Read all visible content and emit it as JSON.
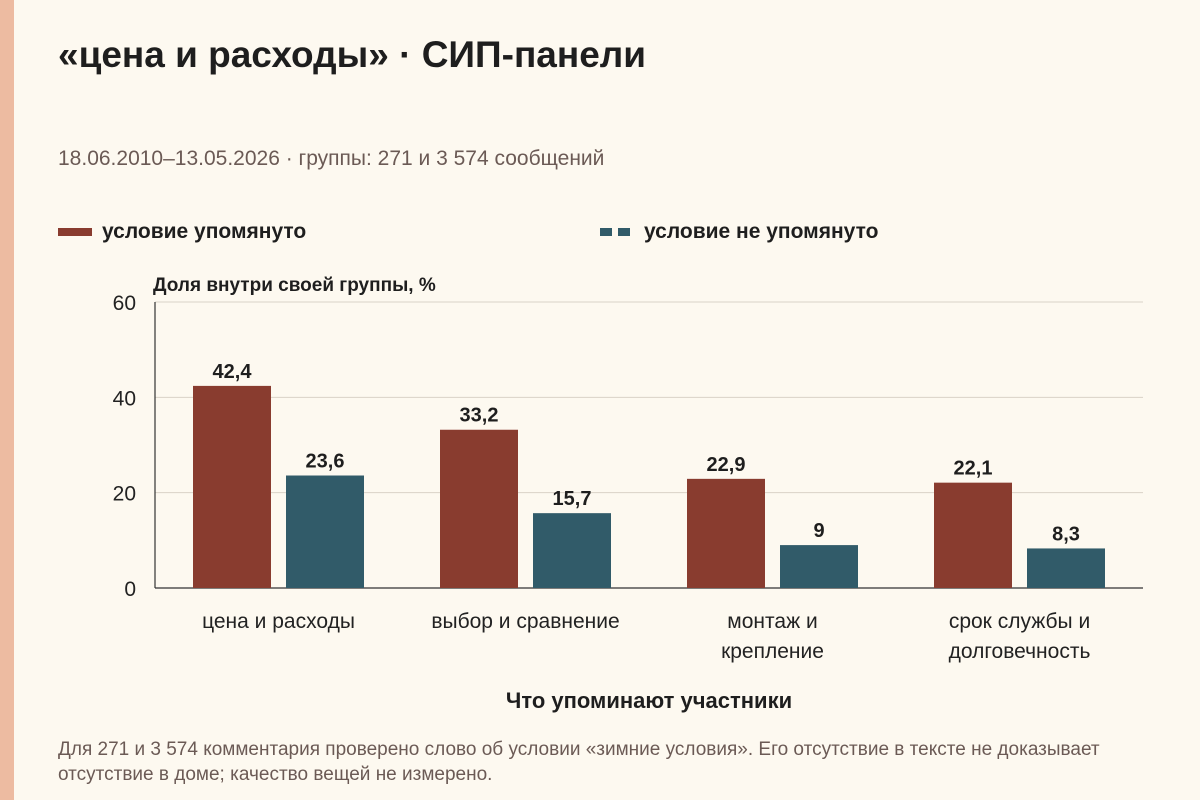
{
  "title": "«цена и расходы» · СИП-панели",
  "subtitle": "18.06.2010–13.05.2026 · группы: 271 и 3 574 сообщений",
  "footnote": "Для 271 и 3 574 комментария проверено слово об условии «зимние условия». Его отсутствие в тексте не доказывает отсутствие в доме; качество вещей не измерено.",
  "colors": {
    "mentioned": "#893c2f",
    "not_mentioned": "#315b69"
  },
  "chart_data": {
    "type": "bar",
    "ylabel": "Доля внутри своей группы, %",
    "xlabel": "Что упоминают участники",
    "ylim": [
      0,
      60
    ],
    "yticks": [
      0,
      20,
      40,
      60
    ],
    "grid": true,
    "legend_position": "top",
    "categories": [
      [
        "цена и расходы"
      ],
      [
        "выбор и сравнение"
      ],
      [
        "монтаж и",
        "крепление"
      ],
      [
        "срок службы и",
        "долговечность"
      ]
    ],
    "series": [
      {
        "name": "условие упомянуто",
        "values": [
          42.4,
          33.2,
          22.9,
          22.1
        ],
        "labels": [
          "42,4",
          "33,2",
          "22,9",
          "22,1"
        ]
      },
      {
        "name": "условие не упомянуто",
        "values": [
          23.6,
          15.7,
          9,
          8.3
        ],
        "labels": [
          "23,6",
          "15,7",
          "9",
          "8,3"
        ]
      }
    ]
  }
}
